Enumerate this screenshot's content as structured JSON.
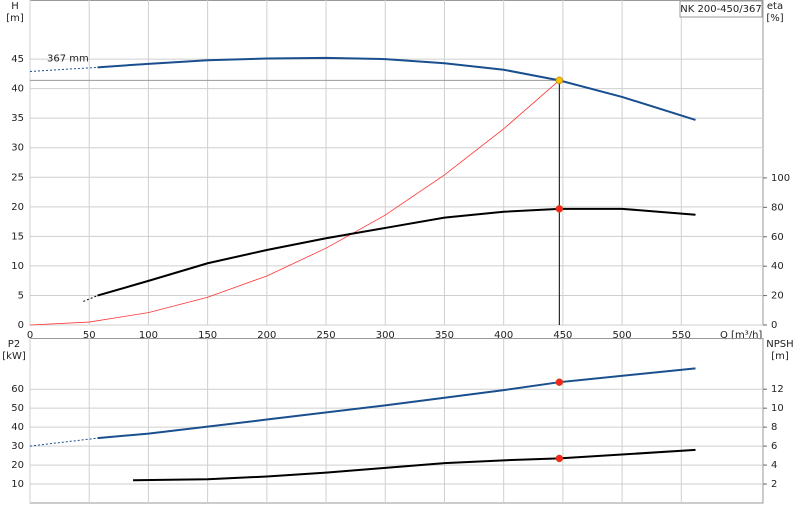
{
  "chart_data": [
    {
      "type": "line",
      "title": "NK 200-450/367",
      "ylabel": "H",
      "yunit": "[m]",
      "y2label": "eta",
      "y2unit": "[%]",
      "xlabel": "Q [m³/h]",
      "annotation": "367 mm",
      "x_tick_labels": true,
      "xlim": [
        0,
        619
      ],
      "xticks": [
        0,
        50,
        100,
        150,
        200,
        250,
        300,
        350,
        400,
        450,
        500,
        550
      ],
      "ylim": [
        0,
        55
      ],
      "yticks": [
        0,
        5,
        10,
        15,
        20,
        25,
        30,
        35,
        40,
        45
      ],
      "y2lim": [
        0,
        221
      ],
      "y2ticks": [
        0,
        20,
        40,
        60,
        80,
        100
      ],
      "grid": true,
      "series": [
        {
          "color": "#999999",
          "width": 1,
          "x": [
            0,
            447
          ],
          "values": [
            41.4,
            41.4
          ]
        },
        {
          "color": "#000000",
          "width": 1,
          "x": [
            447,
            447
          ],
          "values": [
            0,
            41.4
          ]
        },
        {
          "color": "#ff3333",
          "width": 0.8,
          "x": [
            0,
            50,
            100,
            150,
            200,
            250,
            300,
            350,
            400,
            447
          ],
          "values": [
            0,
            0.5,
            2.1,
            4.7,
            8.3,
            13,
            18.6,
            25.4,
            33.2,
            41.4
          ]
        },
        {
          "color": "#1a4f8f",
          "width": 1,
          "dash": true,
          "x": [
            0,
            57
          ],
          "values": [
            42.9,
            43.6
          ]
        },
        {
          "color": "#1a4f8f",
          "width": 2,
          "x": [
            57,
            100,
            150,
            200,
            250,
            300,
            350,
            400,
            447,
            500,
            562
          ],
          "values": [
            43.6,
            44.2,
            44.8,
            45.1,
            45.2,
            45.0,
            44.3,
            43.2,
            41.4,
            38.6,
            34.7
          ]
        },
        {
          "color": "#000000",
          "width": 1,
          "dash": true,
          "axis": "y2",
          "x": [
            45,
            57
          ],
          "values": [
            16,
            20
          ]
        },
        {
          "color": "#000000",
          "width": 2,
          "axis": "y2",
          "x": [
            57,
            100,
            150,
            200,
            250,
            300,
            350,
            400,
            447,
            500,
            562
          ],
          "values": [
            20,
            30,
            42,
            51,
            59,
            66,
            73,
            77,
            79,
            79,
            75
          ]
        },
        {
          "marker": "#f5c400",
          "x": [
            447
          ],
          "values": [
            41.4
          ]
        },
        {
          "marker": "#ff2222",
          "axis": "y2",
          "x": [
            447
          ],
          "values": [
            79
          ]
        }
      ]
    },
    {
      "type": "line",
      "ylabel": "P2",
      "yunit": "[kW]",
      "y2label": "NPSH",
      "y2unit": "[m]",
      "x_tick_labels": false,
      "xlim": [
        0,
        619
      ],
      "xticks": [
        0,
        50,
        100,
        150,
        200,
        250,
        300,
        350,
        400,
        450,
        500,
        550
      ],
      "ylim": [
        0,
        87
      ],
      "yticks": [
        10,
        20,
        30,
        40,
        50,
        60
      ],
      "y2lim": [
        0,
        17.4
      ],
      "y2ticks": [
        2,
        4,
        6,
        8,
        10,
        12
      ],
      "grid": true,
      "series": [
        {
          "color": "#1a4f8f",
          "width": 1,
          "dash": true,
          "x": [
            0,
            57
          ],
          "values": [
            30,
            34.2
          ]
        },
        {
          "color": "#1a4f8f",
          "width": 2,
          "x": [
            57,
            100,
            200,
            300,
            400,
            447,
            562
          ],
          "values": [
            34.2,
            36.6,
            44,
            51.5,
            59.5,
            63.7,
            71
          ]
        },
        {
          "color": "#000000",
          "width": 2,
          "axis": "y2",
          "x": [
            87,
            150,
            200,
            250,
            300,
            350,
            400,
            447,
            562
          ],
          "values": [
            2.4,
            2.5,
            2.8,
            3.2,
            3.7,
            4.2,
            4.5,
            4.7,
            5.6
          ]
        },
        {
          "marker": "#ff2222",
          "x": [
            447
          ],
          "values": [
            63.7
          ]
        },
        {
          "marker": "#ff2222",
          "axis": "y2",
          "x": [
            447
          ],
          "values": [
            4.7
          ]
        }
      ]
    }
  ]
}
